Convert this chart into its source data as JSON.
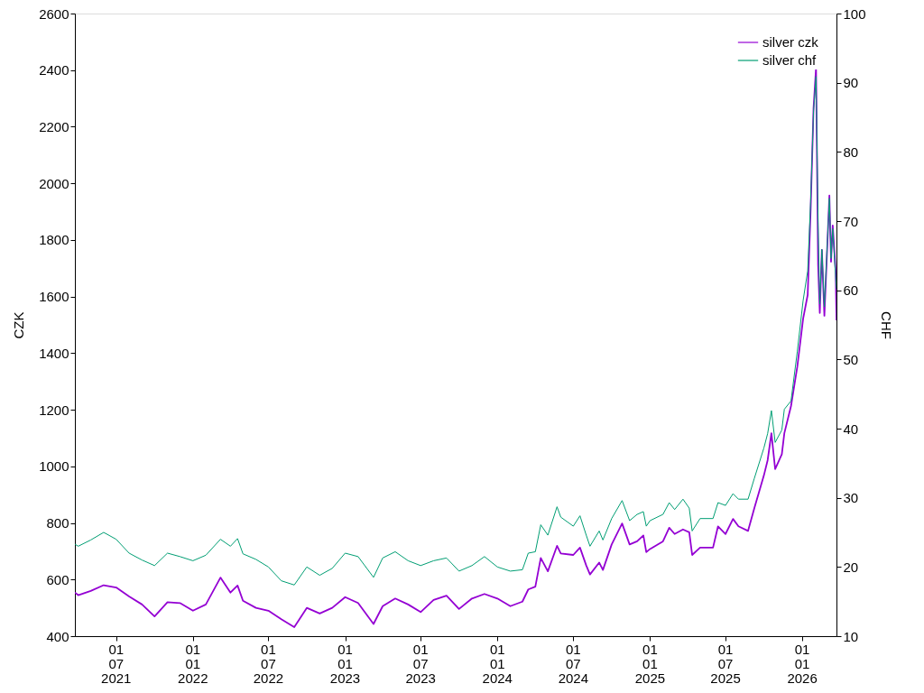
{
  "chart_data": {
    "type": "line",
    "ylabel": "CZK",
    "y2label": "CHF",
    "grid": false,
    "legend": "top right",
    "marker": "none",
    "line_style": "solid",
    "xlim": [
      "2021-03-24",
      "2026-03-24"
    ],
    "xticks": [
      {
        "value": "2021-07-01",
        "label": "01\n07\n2021"
      },
      {
        "value": "2022-01-01",
        "label": "01\n01\n2022"
      },
      {
        "value": "2022-07-01",
        "label": "01\n07\n2022"
      },
      {
        "value": "2023-01-01",
        "label": "01\n01\n2023"
      },
      {
        "value": "2023-07-01",
        "label": "01\n07\n2023"
      },
      {
        "value": "2024-01-01",
        "label": "01\n01\n2024"
      },
      {
        "value": "2024-07-01",
        "label": "01\n07\n2024"
      },
      {
        "value": "2025-01-01",
        "label": "01\n01\n2025"
      },
      {
        "value": "2025-07-01",
        "label": "01\n07\n2025"
      },
      {
        "value": "2026-01-01",
        "label": "01\n01\n2026"
      }
    ],
    "ylim": [
      400,
      2600
    ],
    "yticks": [
      400,
      600,
      800,
      1000,
      1200,
      1400,
      1600,
      1800,
      2000,
      2200,
      2400,
      2600
    ],
    "y2lim": [
      10,
      100
    ],
    "y2ticks": [
      10,
      20,
      30,
      40,
      50,
      60,
      70,
      80,
      90,
      100
    ],
    "x": [
      "2021-03-24",
      "2021-04-01",
      "2021-05-01",
      "2021-06-01",
      "2021-07-01",
      "2021-08-01",
      "2021-09-01",
      "2021-10-01",
      "2021-11-01",
      "2021-12-01",
      "2022-01-01",
      "2022-02-01",
      "2022-03-08",
      "2022-04-01",
      "2022-04-18",
      "2022-05-01",
      "2022-06-01",
      "2022-07-01",
      "2022-08-01",
      "2022-09-01",
      "2022-10-01",
      "2022-11-01",
      "2022-12-01",
      "2023-01-01",
      "2023-02-01",
      "2023-03-10",
      "2023-04-01",
      "2023-05-01",
      "2023-06-01",
      "2023-07-01",
      "2023-08-01",
      "2023-09-01",
      "2023-10-01",
      "2023-11-01",
      "2023-12-01",
      "2024-01-01",
      "2024-02-01",
      "2024-03-01",
      "2024-03-15",
      "2024-04-01",
      "2024-04-14",
      "2024-05-01",
      "2024-05-23",
      "2024-06-01",
      "2024-07-01",
      "2024-07-17",
      "2024-08-01",
      "2024-08-10",
      "2024-09-01",
      "2024-09-10",
      "2024-10-01",
      "2024-10-26",
      "2024-11-13",
      "2024-12-01",
      "2024-12-16",
      "2024-12-23",
      "2025-01-01",
      "2025-02-01",
      "2025-02-16",
      "2025-03-01",
      "2025-03-21",
      "2025-04-05",
      "2025-04-12",
      "2025-05-01",
      "2025-06-01",
      "2025-06-13",
      "2025-07-01",
      "2025-07-19",
      "2025-08-01",
      "2025-08-24",
      "2025-09-08",
      "2025-10-01",
      "2025-10-10",
      "2025-10-19",
      "2025-10-28",
      "2025-11-13",
      "2025-11-19",
      "2025-12-05",
      "2025-12-20",
      "2026-01-03",
      "2026-01-14",
      "2026-01-21",
      "2026-01-28",
      "2026-02-03",
      "2026-02-08",
      "2026-02-12",
      "2026-02-17",
      "2026-02-23",
      "2026-03-07",
      "2026-03-11",
      "2026-03-15",
      "2026-03-22",
      "2026-03-24"
    ],
    "series": [
      {
        "name": "silver czk",
        "color": "#9400d3",
        "values": [
          554,
          545,
          560,
          580,
          572,
          540,
          512,
          470,
          520,
          517,
          490,
          512,
          607,
          554,
          579,
          525,
          500,
          490,
          460,
          432,
          500,
          480,
          500,
          538,
          517,
          443,
          506,
          533,
          512,
          485,
          528,
          543,
          496,
          533,
          549,
          533,
          506,
          522,
          565,
          575,
          676,
          629,
          719,
          692,
          687,
          713,
          650,
          618,
          660,
          634,
          724,
          798,
          724,
          735,
          756,
          697,
          708,
          735,
          783,
          761,
          777,
          767,
          687,
          713,
          713,
          788,
          761,
          814,
          788,
          772,
          852,
          968,
          1022,
          1117,
          990,
          1043,
          1117,
          1213,
          1351,
          1521,
          1606,
          1904,
          2265,
          2408,
          1712,
          1542,
          1765,
          1532,
          1957,
          1723,
          1851,
          1691,
          1516
        ]
      },
      {
        "name": "silver chf",
        "color": "#009e73",
        "axis": "y2",
        "values": [
          23.3,
          23.0,
          23.9,
          25.0,
          24.0,
          22.0,
          21.0,
          20.2,
          22.0,
          21.5,
          20.9,
          21.7,
          24.0,
          23.0,
          24.1,
          21.9,
          21.1,
          20.0,
          18.0,
          17.4,
          20.0,
          18.8,
          19.8,
          22.0,
          21.5,
          18.5,
          21.3,
          22.2,
          20.9,
          20.2,
          20.9,
          21.3,
          19.4,
          20.2,
          21.5,
          20.0,
          19.4,
          19.6,
          22.0,
          22.2,
          26.1,
          24.6,
          28.7,
          27.2,
          25.9,
          27.4,
          24.6,
          23.0,
          25.2,
          23.9,
          27.0,
          29.6,
          26.7,
          27.6,
          28.0,
          25.9,
          26.7,
          27.6,
          29.3,
          28.3,
          29.8,
          28.5,
          25.2,
          27.0,
          27.0,
          29.3,
          28.9,
          30.6,
          29.8,
          29.8,
          32.8,
          37.2,
          39.3,
          42.6,
          38.0,
          39.8,
          42.8,
          44.0,
          51.1,
          58.5,
          62.8,
          72.8,
          85.9,
          90.9,
          69.8,
          58.0,
          65.9,
          57.6,
          73.3,
          64.6,
          68.9,
          61.9,
          60.2
        ]
      }
    ]
  }
}
